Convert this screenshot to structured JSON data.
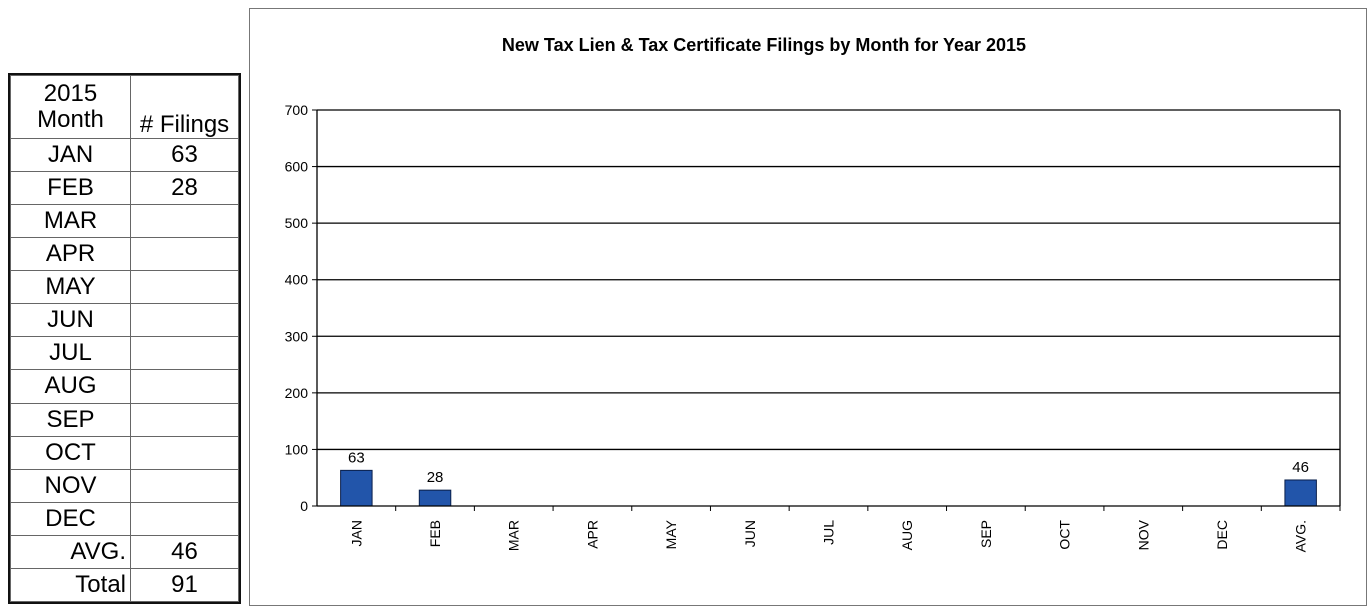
{
  "table": {
    "header": {
      "month_year": "2015",
      "month_label": "Month",
      "filings_label": "# Filings"
    },
    "rows": [
      {
        "month": "JAN",
        "filings": "63"
      },
      {
        "month": "FEB",
        "filings": "28"
      },
      {
        "month": "MAR",
        "filings": ""
      },
      {
        "month": "APR",
        "filings": ""
      },
      {
        "month": "MAY",
        "filings": ""
      },
      {
        "month": "JUN",
        "filings": ""
      },
      {
        "month": "JUL",
        "filings": ""
      },
      {
        "month": "AUG",
        "filings": ""
      },
      {
        "month": "SEP",
        "filings": ""
      },
      {
        "month": "OCT",
        "filings": ""
      },
      {
        "month": "NOV",
        "filings": ""
      },
      {
        "month": "DEC",
        "filings": ""
      }
    ],
    "avg_label": "AVG.",
    "avg_value": "46",
    "total_label": "Total",
    "total_value": "91"
  },
  "chart_data": {
    "type": "bar",
    "title": "New Tax Lien & Tax Certificate Filings by Month for Year 2015",
    "categories": [
      "JAN",
      "FEB",
      "MAR",
      "APR",
      "MAY",
      "JUN",
      "JUL",
      "AUG",
      "SEP",
      "OCT",
      "NOV",
      "DEC",
      "AVG."
    ],
    "values": [
      63,
      28,
      null,
      null,
      null,
      null,
      null,
      null,
      null,
      null,
      null,
      null,
      46
    ],
    "data_labels": [
      "63",
      "28",
      "",
      "",
      "",
      "",
      "",
      "",
      "",
      "",
      "",
      "",
      "46"
    ],
    "ylim": [
      0,
      700
    ],
    "yticks": [
      0,
      100,
      200,
      300,
      400,
      500,
      600,
      700
    ],
    "xlabel": "",
    "ylabel": "",
    "grid": true,
    "bar_color": "#2255aa",
    "bar_edge_color": "#0a1f4a",
    "grid_color": "#000000"
  }
}
